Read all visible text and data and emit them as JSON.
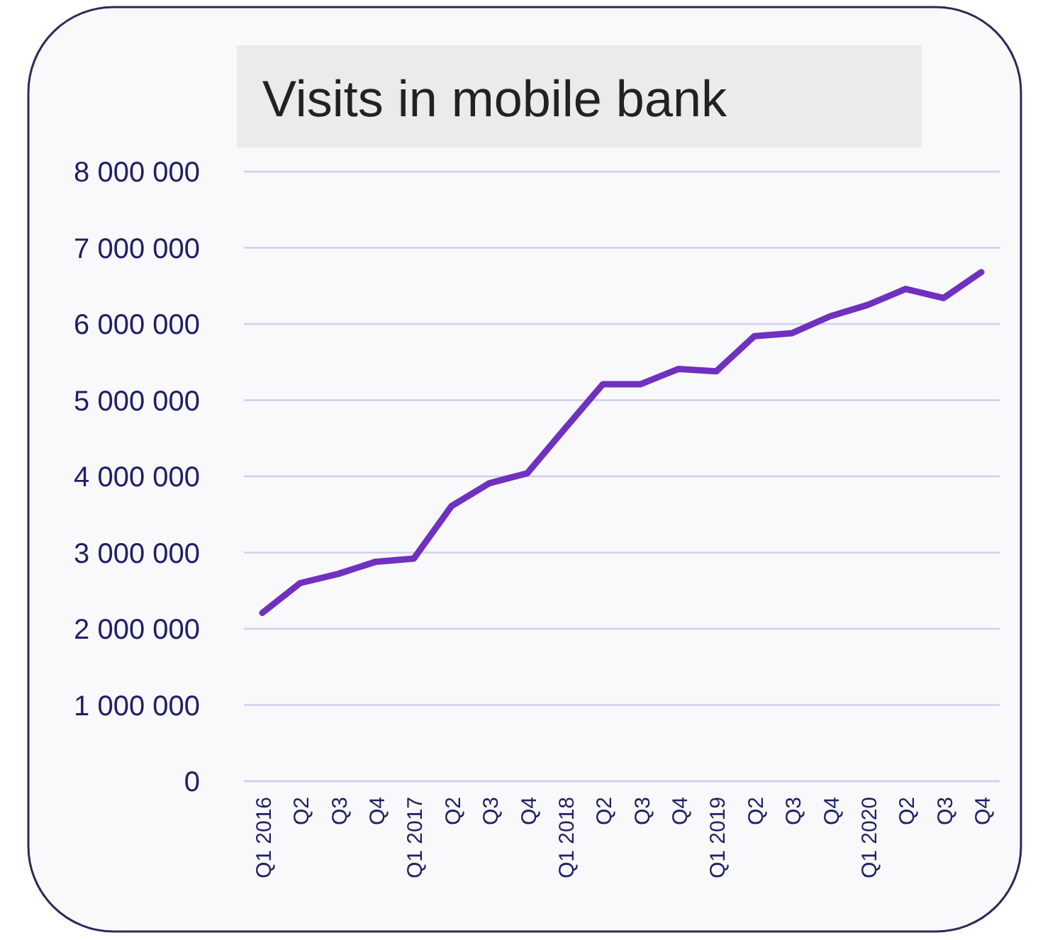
{
  "chart_data": {
    "type": "line",
    "title": "Visits in mobile bank",
    "categories": [
      "Q1 2016",
      "Q2",
      "Q3",
      "Q4",
      "Q1 2017",
      "Q2",
      "Q3",
      "Q4",
      "Q1 2018",
      "Q2",
      "Q3",
      "Q4",
      "Q1 2019",
      "Q2",
      "Q3",
      "Q4",
      "Q1 2020",
      "Q2",
      "Q3",
      "Q4"
    ],
    "series": [
      {
        "color": "#7030c0",
        "values": [
          2210000,
          2600000,
          2720000,
          2880000,
          2920000,
          3610000,
          3910000,
          4040000,
          4630000,
          5210000,
          5210000,
          5410000,
          5380000,
          5840000,
          5880000,
          6100000,
          6250000,
          6460000,
          6340000,
          6680000
        ]
      }
    ],
    "ylim": [
      0,
      8000000
    ],
    "yticks": [
      0,
      {
        "value": 1000000,
        "label": "1 000 000"
      },
      {
        "value": 2000000,
        "label": "2 000 000"
      },
      {
        "value": 3000000,
        "label": "3 000 000"
      },
      {
        "value": 4000000,
        "label": "4 000 000"
      },
      {
        "value": 5000000,
        "label": "5 000 000"
      },
      {
        "value": 6000000,
        "label": "6 000 000"
      },
      {
        "value": 7000000,
        "label": "7 000 000"
      },
      {
        "value": 8000000,
        "label": "8 000 000"
      }
    ],
    "grid": "y",
    "marker": "none",
    "line_style": "solid"
  }
}
